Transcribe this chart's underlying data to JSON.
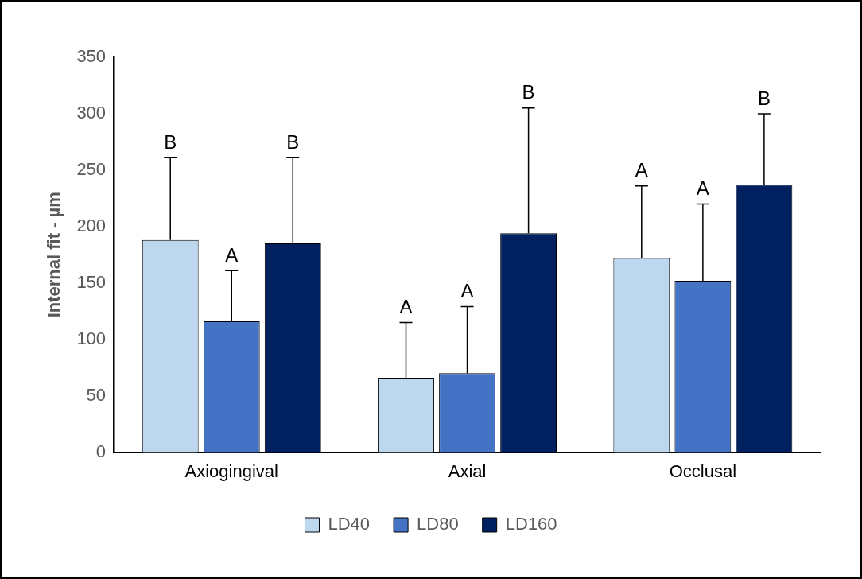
{
  "chart_data": {
    "type": "bar",
    "ylabel": "Internal fit - µm",
    "categories": [
      "Axiogingival",
      "Axial",
      "Occlusal"
    ],
    "series": [
      {
        "name": "LD40",
        "color": "#bdd7ee",
        "values": [
          188,
          66,
          172
        ],
        "errors": [
          [
            188,
            261
          ],
          [
            66,
            115
          ],
          [
            172,
            236
          ]
        ]
      },
      {
        "name": "LD80",
        "color": "#4472c4",
        "values": [
          116,
          70,
          152
        ],
        "errors": [
          [
            116,
            161
          ],
          [
            70,
            129
          ],
          [
            152,
            220
          ]
        ]
      },
      {
        "name": "LD160",
        "color": "#002060",
        "values": [
          185,
          194,
          237
        ],
        "errors": [
          [
            185,
            261
          ],
          [
            194,
            305
          ],
          [
            237,
            300
          ]
        ]
      }
    ],
    "annotations": [
      "B",
      "A",
      "B",
      "A",
      "A",
      "B",
      "A",
      "A",
      "B"
    ],
    "ylim": [
      0,
      350
    ],
    "yticks": [
      0,
      50,
      100,
      150,
      200,
      250,
      300,
      350
    ],
    "grid": false,
    "legend": "bottom"
  }
}
